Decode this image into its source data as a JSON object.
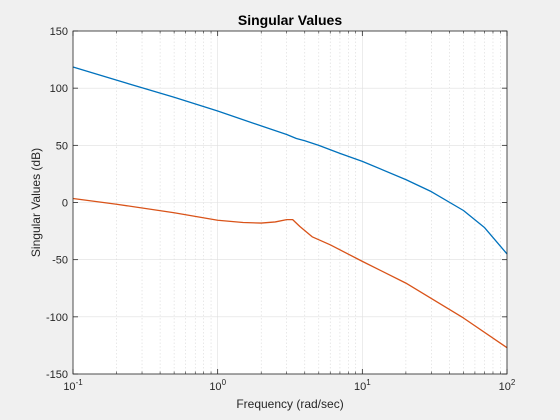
{
  "chart_data": {
    "type": "line",
    "title": "Singular Values",
    "xlabel": "Frequency (rad/sec)",
    "ylabel": "Singular Values (dB)",
    "xscale": "log",
    "xlim": [
      0.1,
      100
    ],
    "ylim": [
      -150,
      150
    ],
    "x_ticks": [
      {
        "value": 0.1,
        "base": "10",
        "exp": "-1"
      },
      {
        "value": 1,
        "base": "10",
        "exp": "0"
      },
      {
        "value": 10,
        "base": "10",
        "exp": "1"
      },
      {
        "value": 100,
        "base": "10",
        "exp": "2"
      }
    ],
    "y_ticks": [
      150,
      100,
      50,
      0,
      -50,
      -100,
      -150
    ],
    "grid": true,
    "background": "#ffffff",
    "series": [
      {
        "color": "#0072bd",
        "x": [
          0.1,
          0.2,
          0.5,
          1,
          2,
          3,
          3.5,
          4,
          5,
          7,
          10,
          20,
          30,
          50,
          70,
          100
        ],
        "y": [
          118.5,
          107,
          92,
          80,
          67,
          59.5,
          56,
          54,
          50,
          43,
          36,
          20,
          9.5,
          -7,
          -22,
          -45
        ]
      },
      {
        "color": "#d95319",
        "x": [
          0.1,
          0.2,
          0.5,
          1,
          1.5,
          2,
          2.5,
          3,
          3.3,
          3.7,
          4.5,
          6,
          10,
          20,
          50,
          100
        ],
        "y": [
          3.5,
          -1.5,
          -9,
          -15.5,
          -17.5,
          -18,
          -17,
          -15,
          -15,
          -21,
          -30,
          -37,
          -51.5,
          -70.5,
          -101,
          -127
        ]
      }
    ]
  }
}
